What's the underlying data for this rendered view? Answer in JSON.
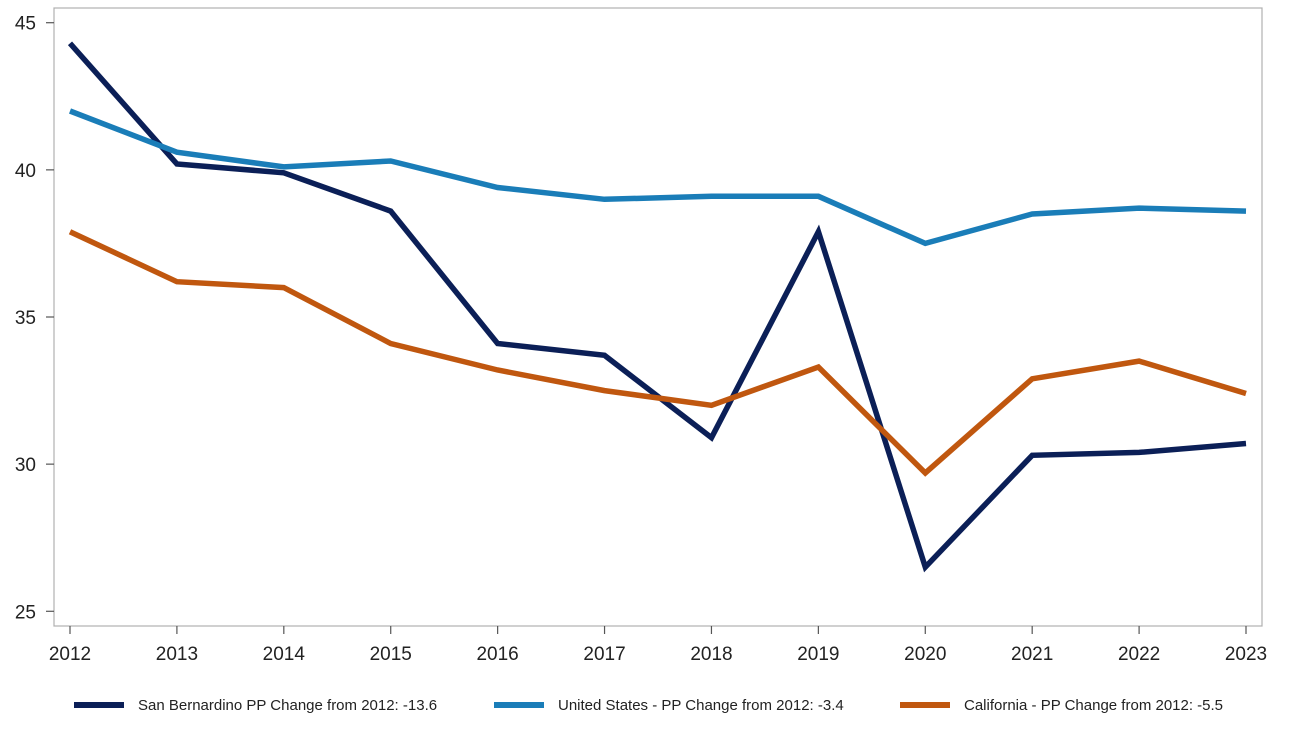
{
  "chart_data": {
    "type": "line",
    "title": "",
    "xlabel": "",
    "ylabel": "",
    "categories": [
      "2012",
      "2013",
      "2014",
      "2015",
      "2016",
      "2017",
      "2018",
      "2019",
      "2020",
      "2021",
      "2022",
      "2023"
    ],
    "ylim": [
      24.5,
      45.5
    ],
    "yticks": [
      25,
      30,
      35,
      40,
      45
    ],
    "grid": false,
    "legend_position": "bottom",
    "series": [
      {
        "name": "San Bernardino PP Change from 2012: -13.6",
        "color": "#0b1f57",
        "values": [
          44.3,
          40.2,
          39.9,
          38.6,
          34.1,
          33.7,
          30.9,
          37.9,
          26.5,
          30.3,
          30.4,
          30.7
        ]
      },
      {
        "name": "United States - PP Change from 2012: -3.4",
        "color": "#1a7db8",
        "values": [
          42.0,
          40.6,
          40.1,
          40.3,
          39.4,
          39.0,
          39.1,
          39.1,
          37.5,
          38.5,
          38.7,
          38.6
        ]
      },
      {
        "name": "California - PP Change from 2012: -5.5",
        "color": "#c0570f",
        "values": [
          37.9,
          36.2,
          36.0,
          34.1,
          33.2,
          32.5,
          32.0,
          33.3,
          29.7,
          32.9,
          33.5,
          32.4
        ]
      }
    ]
  }
}
